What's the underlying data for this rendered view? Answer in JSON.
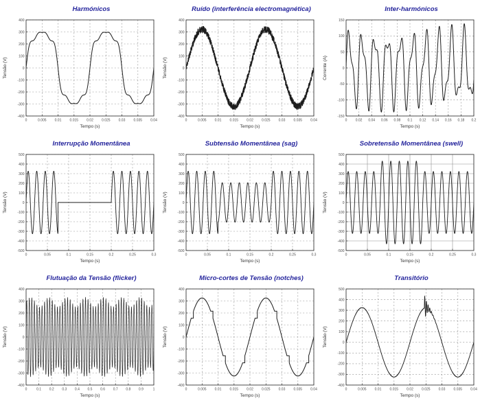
{
  "page": {
    "background": "#ffffff"
  },
  "style": {
    "title_color": "#24249c",
    "line_color": "#1c1c1c",
    "grid_color": "#8f8f8f",
    "frame_color": "#3a3a3a",
    "tick_label_color": "#4a4a4a",
    "axis_label_color": "#333333"
  },
  "chart_data": [
    {
      "id": "harmonicos",
      "type": "line",
      "title": "Harmónicos",
      "xlabel": "Tempo (s)",
      "ylabel": "Tensão (V)",
      "xlim": [
        0,
        0.04
      ],
      "ylim": [
        -400,
        400
      ],
      "xticks": [
        0,
        0.005,
        0.01,
        0.015,
        0.02,
        0.025,
        0.03,
        0.035,
        0.04
      ],
      "xtick_labels": [
        "0",
        "0.005",
        "0.01",
        "0.015",
        "0.02",
        "0.025",
        "0.03",
        "0.035",
        "0.04"
      ],
      "yticks": [
        400,
        300,
        200,
        100,
        0,
        -100,
        -200,
        -300,
        -400
      ],
      "ytick_labels": [
        "400",
        "300",
        "200",
        "100",
        "0",
        "-100",
        "-200",
        "-300",
        "-400"
      ],
      "grid": "dashed",
      "line_width": 1.0,
      "signal": {
        "kind": "multi_sine",
        "components": [
          [
            50,
            330
          ],
          [
            150,
            50
          ],
          [
            250,
            33
          ],
          [
            350,
            17
          ]
        ],
        "samples": 1600
      }
    },
    {
      "id": "ruido",
      "type": "line",
      "title": "Ruído (interferência electromagnética)",
      "xlabel": "Tempo (s)",
      "ylabel": "Tensão (V)",
      "xlim": [
        0,
        0.04
      ],
      "ylim": [
        -400,
        400
      ],
      "xticks": [
        0,
        0.005,
        0.01,
        0.015,
        0.02,
        0.025,
        0.03,
        0.035,
        0.04
      ],
      "xtick_labels": [
        "0",
        "0.005",
        "0.01",
        "0.015",
        "0.02",
        "0.025",
        "0.03",
        "0.035",
        "0.04"
      ],
      "yticks": [
        400,
        300,
        200,
        100,
        0,
        -100,
        -200,
        -300,
        -400
      ],
      "ytick_labels": [
        "400",
        "300",
        "200",
        "100",
        "0",
        "-100",
        "-200",
        "-300",
        "-400"
      ],
      "grid": "dashed",
      "line_width": 0.8,
      "signal": {
        "kind": "sine_noise",
        "frequency": 50,
        "amplitude": 322,
        "noise": 30,
        "seed": 11,
        "samples": 1600
      }
    },
    {
      "id": "inter-harmonicos",
      "type": "line",
      "title": "Inter-harmónicos",
      "xlabel": "Tempo (s)",
      "ylabel": "Corrente (A)",
      "xlim": [
        0,
        0.2
      ],
      "ylim": [
        -150,
        150
      ],
      "xticks": [
        0,
        0.02,
        0.04,
        0.06,
        0.08,
        0.1,
        0.12,
        0.14,
        0.16,
        0.18,
        0.2
      ],
      "xtick_labels": [
        "0",
        "0.02",
        "0.04",
        "0.06",
        "0.08",
        "0.1",
        "0.12",
        "0.14",
        "0.16",
        "0.18",
        "0.2"
      ],
      "yticks": [
        150,
        100,
        50,
        0,
        -50,
        -100,
        -150
      ],
      "ytick_labels": [
        "150",
        "100",
        "50",
        "0",
        "-50",
        "-100",
        "-150"
      ],
      "grid": "dashed",
      "line_width": 1.0,
      "signal": {
        "kind": "multi_sine",
        "components": [
          [
            50,
            100
          ],
          [
            104,
            38
          ]
        ],
        "samples": 2400
      }
    },
    {
      "id": "interrupcao",
      "type": "line",
      "title": "Interrupção Momentânea",
      "xlabel": "Tempo (s)",
      "ylabel": "Tensão (V)",
      "xlim": [
        0,
        0.3
      ],
      "ylim": [
        -500,
        500
      ],
      "xticks": [
        0,
        0.05,
        0.1,
        0.15,
        0.2,
        0.25,
        0.3
      ],
      "xtick_labels": [
        "0",
        "0.05",
        "0.1",
        "0.15",
        "0.2",
        "0.25",
        "0.3"
      ],
      "yticks": [
        500,
        400,
        300,
        200,
        100,
        0,
        -100,
        -200,
        -300,
        -400,
        -500
      ],
      "ytick_labels": [
        "500",
        "400",
        "300",
        "200",
        "100",
        "0",
        "-100",
        "-200",
        "-300",
        "-400",
        "-500"
      ],
      "grid": "dashed",
      "line_width": 0.9,
      "signal": {
        "kind": "event_sine",
        "frequency": 50,
        "amplitude": 325,
        "event_start": 0.075,
        "event_end": 0.2,
        "event_amplitude": 0,
        "samples": 3000
      }
    },
    {
      "id": "subtensao-sag",
      "type": "line",
      "title": "Subtensão Momentânea (sag)",
      "xlabel": "Tempo (s)",
      "ylabel": "Tensão (V)",
      "xlim": [
        0,
        0.3
      ],
      "ylim": [
        -500,
        500
      ],
      "xticks": [
        0,
        0.05,
        0.1,
        0.15,
        0.2,
        0.25,
        0.3
      ],
      "xtick_labels": [
        "0",
        "0.05",
        "0.1",
        "0.15",
        "0.2",
        "0.25",
        "0.3"
      ],
      "yticks": [
        500,
        400,
        300,
        200,
        100,
        0,
        -100,
        -200,
        -300,
        -400,
        -500
      ],
      "ytick_labels": [
        "500",
        "400",
        "300",
        "200",
        "100",
        "0",
        "-100",
        "-200",
        "-300",
        "-400",
        "-500"
      ],
      "grid": "dashed",
      "line_width": 0.9,
      "signal": {
        "kind": "event_sine",
        "frequency": 50,
        "amplitude": 325,
        "event_start": 0.075,
        "event_end": 0.2,
        "event_amplitude": 205,
        "samples": 3000
      }
    },
    {
      "id": "sobretensao-swell",
      "type": "line",
      "title": "Sobretensão Momentânea (swell)",
      "xlabel": "Tempo (s)",
      "ylabel": "Tensão (V)",
      "xlim": [
        0,
        0.3
      ],
      "ylim": [
        -500,
        500
      ],
      "xticks": [
        0,
        0.05,
        0.1,
        0.15,
        0.2,
        0.25,
        0.3
      ],
      "xtick_labels": [
        "0",
        "0.05",
        "0.1",
        "0.15",
        "0.2",
        "0.25",
        "0.3"
      ],
      "yticks": [
        500,
        400,
        300,
        200,
        100,
        0,
        -100,
        -200,
        -300,
        -400,
        -500
      ],
      "ytick_labels": [
        "500",
        "400",
        "300",
        "200",
        "100",
        "0",
        "-100",
        "-200",
        "-300",
        "-400",
        "-500"
      ],
      "grid": "solid",
      "line_width": 0.9,
      "signal": {
        "kind": "event_sine",
        "frequency": 50,
        "amplitude": 322,
        "event_start": 0.08,
        "event_end": 0.18,
        "event_amplitude": 430,
        "samples": 3000
      }
    },
    {
      "id": "flutuacao-flicker",
      "type": "line",
      "title": "Flutuação da Tensão (flicker)",
      "xlabel": "Tempo (s)",
      "ylabel": "Tensão (V)",
      "xlim": [
        0,
        1
      ],
      "ylim": [
        -400,
        400
      ],
      "xticks": [
        0,
        0.1,
        0.2,
        0.3,
        0.4,
        0.5,
        0.6,
        0.7,
        0.8,
        0.9,
        1
      ],
      "xtick_labels": [
        "0",
        "0.1",
        "0.2",
        "0.3",
        "0.4",
        "0.5",
        "0.6",
        "0.7",
        "0.8",
        "0.9",
        "1"
      ],
      "yticks": [
        400,
        300,
        200,
        100,
        0,
        -100,
        -200,
        -300,
        -400
      ],
      "ytick_labels": [
        "400",
        "300",
        "200",
        "100",
        "0",
        "-100",
        "-200",
        "-300",
        "-400"
      ],
      "grid": "dashed",
      "line_width": 0.65,
      "signal": {
        "kind": "am_sine",
        "carrier": 50,
        "amplitude": 290,
        "mod_frequency": 7,
        "mod_depth": 40,
        "samples": 4000
      }
    },
    {
      "id": "micro-cortes-notches",
      "type": "line",
      "title": "Micro-cortes de Tensão (notches)",
      "xlabel": "Tempo (s)",
      "ylabel": "Tensão (V)",
      "xlim": [
        0,
        0.04
      ],
      "ylim": [
        -400,
        400
      ],
      "xticks": [
        0,
        0.005,
        0.01,
        0.015,
        0.02,
        0.025,
        0.03,
        0.035,
        0.04
      ],
      "xtick_labels": [
        "0",
        "0.005",
        "0.01",
        "0.015",
        "0.02",
        "0.025",
        "0.03",
        "0.035",
        "0.04"
      ],
      "yticks": [
        400,
        300,
        200,
        100,
        0,
        -100,
        -200,
        -300,
        -400
      ],
      "ytick_labels": [
        "400",
        "300",
        "200",
        "100",
        "0",
        "-100",
        "-200",
        "-300",
        "-400"
      ],
      "grid": "dashed",
      "line_width": 1.0,
      "signal": {
        "kind": "notched_sine",
        "frequency": 50,
        "amplitude": 325,
        "notches": [
          [
            0.08,
            0.115
          ],
          [
            0.385,
            0.42
          ],
          [
            0.58,
            0.615
          ],
          [
            0.885,
            0.92
          ]
        ],
        "samples": 2400
      }
    },
    {
      "id": "transitorio",
      "type": "line",
      "title": "Transitório",
      "xlabel": "Tempo (s)",
      "ylabel": "Tensão (V)",
      "xlim": [
        0,
        0.04
      ],
      "ylim": [
        -400,
        500
      ],
      "xticks": [
        0,
        0.005,
        0.01,
        0.015,
        0.02,
        0.025,
        0.03,
        0.035,
        0.04
      ],
      "xtick_labels": [
        "0",
        "0.005",
        "0.01",
        "0.015",
        "0.02",
        "0.025",
        "0.03",
        "0.035",
        "0.04"
      ],
      "yticks": [
        500,
        400,
        300,
        200,
        100,
        0,
        -100,
        -200,
        -300,
        -400
      ],
      "ytick_labels": [
        "500",
        "400",
        "300",
        "200",
        "100",
        "0",
        "-100",
        "-200",
        "-300",
        "-400"
      ],
      "grid": "dashed",
      "line_width": 0.9,
      "signal": {
        "kind": "transient_sine",
        "frequency": 50,
        "amplitude": 325,
        "t0": 0.0245,
        "burst_frequency": 1900,
        "burst_amplitude": 125,
        "decay": 0.0009,
        "samples": 4000
      }
    }
  ]
}
